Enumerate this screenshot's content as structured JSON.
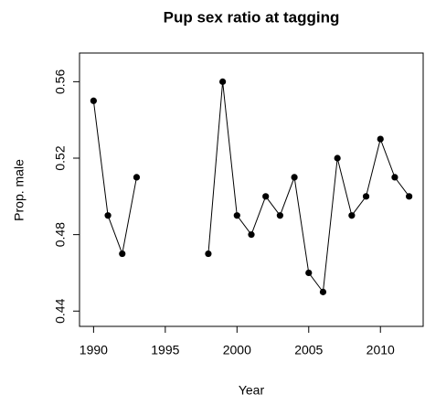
{
  "chart_data": {
    "type": "line",
    "title": "Pup sex ratio at tagging",
    "x_label": "Year",
    "y_label": "Prop. male",
    "x": [
      1990,
      1991,
      1992,
      1993,
      1994,
      1995,
      1996,
      1997,
      1998,
      1999,
      2000,
      2001,
      2002,
      2003,
      2004,
      2005,
      2006,
      2007,
      2008,
      2009,
      2010,
      2011,
      2012
    ],
    "values": [
      0.55,
      0.49,
      0.47,
      0.51,
      null,
      null,
      null,
      null,
      0.47,
      0.56,
      0.49,
      0.48,
      0.5,
      0.49,
      0.51,
      0.46,
      0.45,
      0.52,
      0.49,
      0.5,
      0.53,
      0.51,
      0.5
    ],
    "color": "#000000",
    "xlim": [
      1989.02,
      2012.98
    ],
    "ylim": [
      0.432,
      0.575
    ],
    "xticks": [
      1990,
      1995,
      2000,
      2005,
      2010
    ],
    "yticks": [
      0.44,
      0.48,
      0.52,
      0.56
    ]
  }
}
